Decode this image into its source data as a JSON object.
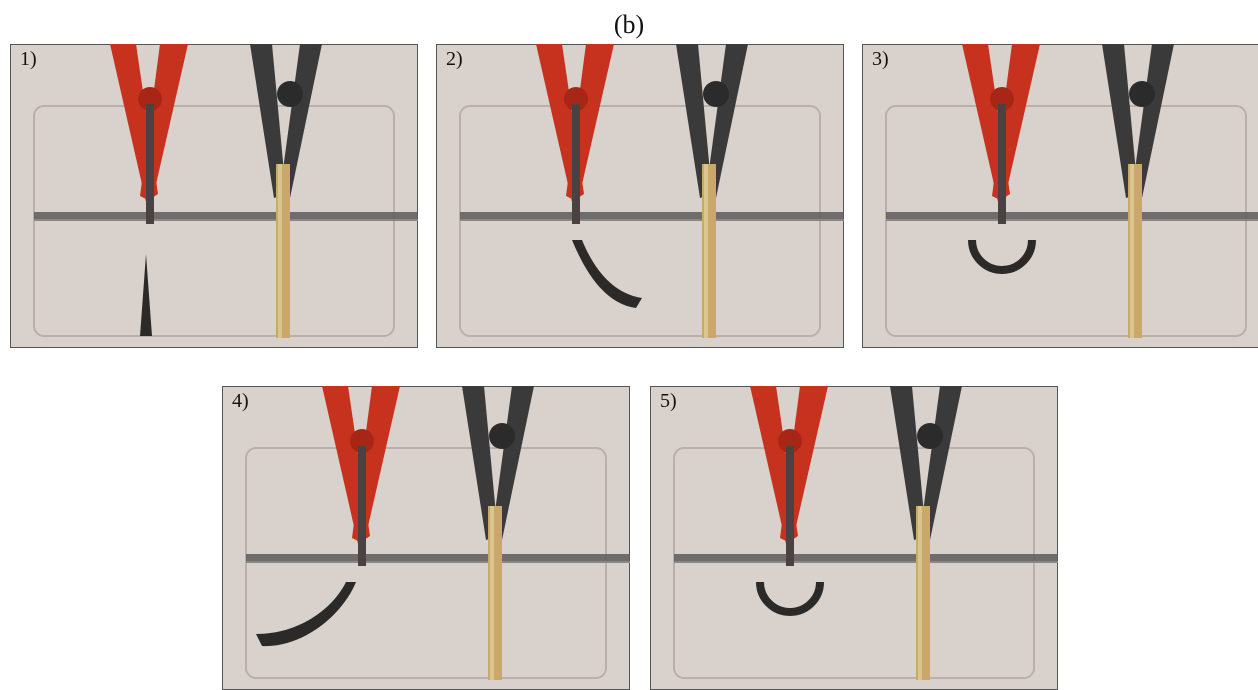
{
  "figure_label": "(b)",
  "panels": [
    {
      "label": "1)",
      "strip_shape": "straight"
    },
    {
      "label": "2)",
      "strip_shape": "bent-right"
    },
    {
      "label": "3)",
      "strip_shape": "semicircle"
    },
    {
      "label": "4)",
      "strip_shape": "bent-left"
    },
    {
      "label": "5)",
      "strip_shape": "semicircle"
    }
  ],
  "colors": {
    "background": "#d9d1cc",
    "red_clip": "#c7321f",
    "dark_clip": "#3b3a3a",
    "actuator_strip": "#2b2a28",
    "gold_electrode": "#c9a86a"
  }
}
